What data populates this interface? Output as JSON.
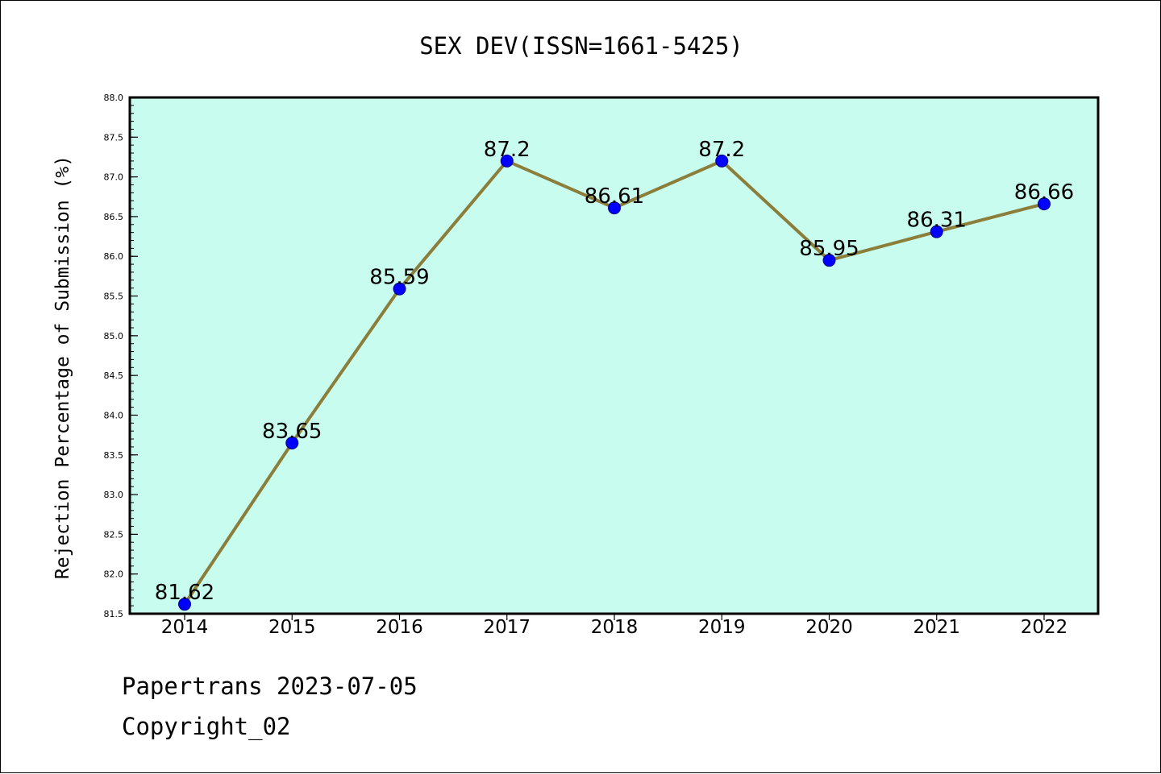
{
  "chart_data": {
    "type": "line",
    "title": "SEX DEV(ISSN=1661-5425)",
    "xlabel": "",
    "ylabel": "Rejection Percentage of Submission (%)",
    "categories": [
      "2014",
      "2015",
      "2016",
      "2017",
      "2018",
      "2019",
      "2020",
      "2021",
      "2022"
    ],
    "series": [
      {
        "values": [
          81.62,
          83.65,
          85.59,
          87.2,
          86.61,
          87.2,
          85.95,
          86.31,
          86.66
        ],
        "data_labels": [
          "81.62",
          "83.65",
          "85.59",
          "87.2",
          "86.61",
          "87.2",
          "85.95",
          "86.31",
          "86.66"
        ]
      }
    ],
    "ylim": [
      81.5,
      88.0
    ],
    "y_ticks": [
      "81.5",
      "82.0",
      "82.5",
      "83.0",
      "83.5",
      "84.0",
      "84.5",
      "85.0",
      "85.5",
      "86.0",
      "86.5",
      "87.0",
      "87.5",
      "88.0"
    ],
    "y_minor_step": 0.1,
    "grid": false,
    "colors": {
      "plot_background": "#c8fcee",
      "line": "#8b7d3a",
      "marker_fill": "#0000ff",
      "marker_edge": "#00008b"
    }
  },
  "footer": {
    "line1": "Papertrans 2023-07-05",
    "line2": "Copyright_02"
  }
}
